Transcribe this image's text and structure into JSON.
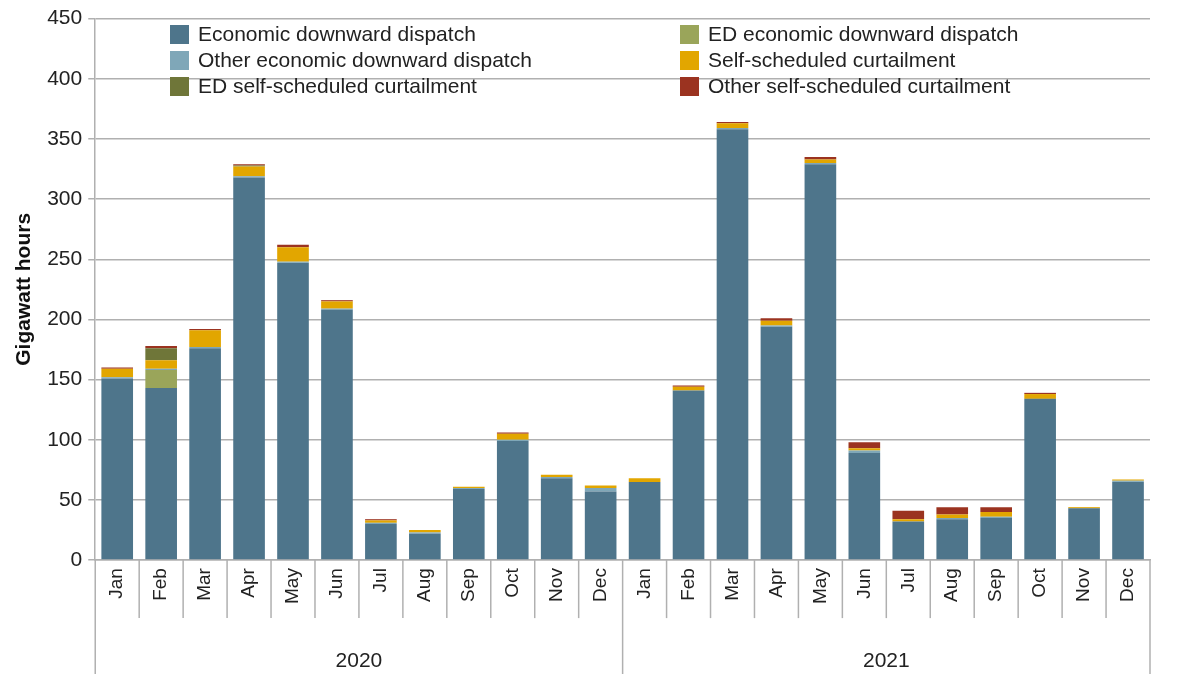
{
  "chart_data": {
    "type": "bar",
    "stacked": true,
    "ylabel": "Gigawatt hours",
    "categories": [
      "Jan",
      "Feb",
      "Mar",
      "Apr",
      "May",
      "Jun",
      "Jul",
      "Aug",
      "Sep",
      "Oct",
      "Nov",
      "Dec",
      "Jan",
      "Feb",
      "Mar",
      "Apr",
      "May",
      "Jun",
      "Jul",
      "Aug",
      "Sep",
      "Oct",
      "Nov",
      "Dec"
    ],
    "annotations": [
      "2020",
      "2021"
    ],
    "series": [
      {
        "name": "Economic downward dispatch",
        "color": "#4e758b",
        "values": [
          151,
          143,
          176,
          318,
          247,
          208,
          30,
          22,
          59,
          99,
          68,
          57,
          65,
          141,
          358,
          194,
          329,
          89,
          32,
          34,
          35,
          134,
          43,
          65
        ]
      },
      {
        "name": "ED economic downward dispatch",
        "color": "#9aa55a",
        "values": [
          0,
          15,
          0,
          0,
          0,
          0,
          0,
          0,
          0,
          0,
          0,
          0,
          0,
          0,
          0,
          0,
          0,
          0,
          0,
          0,
          0,
          0,
          0,
          0
        ]
      },
      {
        "name": "Other economic downward dispatch",
        "color": "#7fa7b8",
        "values": [
          1,
          1,
          1,
          1,
          1,
          1,
          1,
          1,
          1,
          1,
          1,
          3,
          0,
          0,
          1,
          1,
          1,
          2,
          0,
          1,
          1,
          0,
          0,
          1
        ]
      },
      {
        "name": "Self-scheduled curtailment",
        "color": "#e2a600",
        "values": [
          7,
          7,
          14,
          8,
          12,
          6,
          2,
          2,
          1,
          5,
          2,
          2,
          3,
          3,
          4,
          4,
          3,
          2,
          2,
          3,
          4,
          4,
          1,
          1
        ]
      },
      {
        "name": "ED self-scheduled curtailment",
        "color": "#6f7639",
        "values": [
          0,
          10,
          0,
          1,
          0,
          0,
          0,
          0,
          0,
          0,
          0,
          0,
          0,
          0,
          0,
          0,
          0,
          0,
          0,
          0,
          0,
          0,
          0,
          0
        ]
      },
      {
        "name": "Other self-scheduled curtailment",
        "color": "#9b3320",
        "values": [
          1,
          2,
          1,
          1,
          2,
          1,
          1,
          0,
          0,
          1,
          0,
          0,
          0,
          1,
          1,
          2,
          2,
          5,
          7,
          6,
          4,
          1,
          0,
          0
        ]
      }
    ],
    "ylim": [
      0,
      450
    ],
    "yticks": [
      0,
      50,
      100,
      150,
      200,
      250,
      300,
      350,
      400,
      450
    ],
    "grid": "y",
    "legend": "top"
  }
}
